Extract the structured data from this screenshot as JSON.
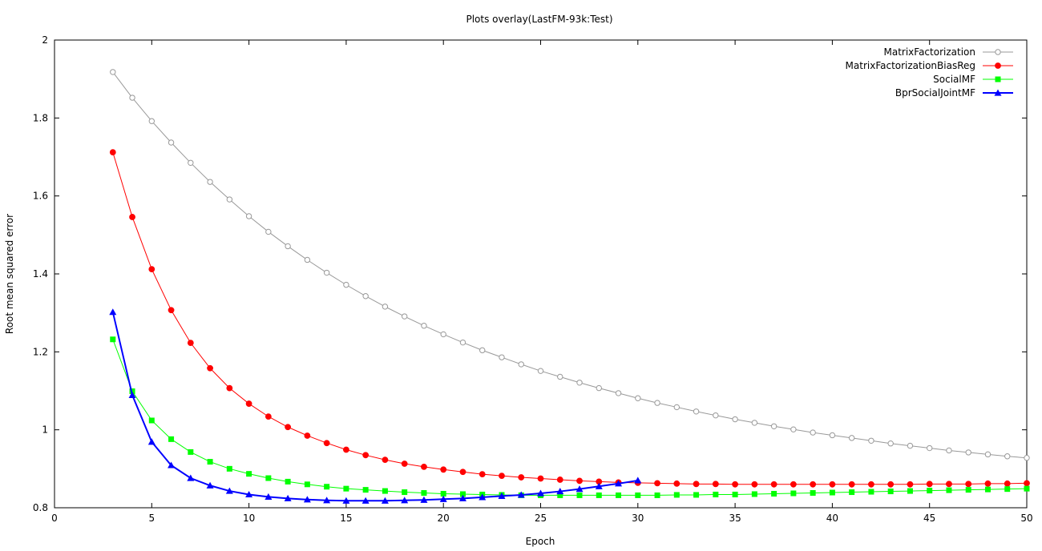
{
  "chart_data": {
    "type": "line",
    "title": "Plots overlay(LastFM-93k:Test)",
    "xlabel": "Epoch",
    "ylabel": "Root mean squared error",
    "xlim": [
      0,
      50
    ],
    "ylim": [
      0.8,
      2
    ],
    "xticks": [
      0,
      5,
      10,
      15,
      20,
      25,
      30,
      35,
      40,
      45,
      50
    ],
    "yticks": [
      0.8,
      1,
      1.2,
      1.4,
      1.6,
      1.8,
      2
    ],
    "xtick_labels": [
      "0",
      "5",
      "10",
      "15",
      "20",
      "25",
      "30",
      "35",
      "40",
      "45",
      "50"
    ],
    "ytick_labels": [
      "0.8",
      "1",
      "1.2",
      "1.4",
      "1.6",
      "1.8",
      "2"
    ],
    "grid": false,
    "legend_position": "top-right",
    "series": [
      {
        "name": "MatrixFactorization",
        "color": "#999999",
        "marker": "open-circle",
        "x": [
          3,
          4,
          5,
          6,
          7,
          8,
          9,
          10,
          11,
          12,
          13,
          14,
          15,
          16,
          17,
          18,
          19,
          20,
          21,
          22,
          23,
          24,
          25,
          26,
          27,
          28,
          29,
          30,
          31,
          32,
          33,
          34,
          35,
          36,
          37,
          38,
          39,
          40,
          41,
          42,
          43,
          44,
          45,
          46,
          47,
          48,
          49,
          50
        ],
        "values": [
          1.918,
          1.852,
          1.792,
          1.737,
          1.685,
          1.636,
          1.591,
          1.548,
          1.508,
          1.471,
          1.436,
          1.403,
          1.372,
          1.343,
          1.316,
          1.291,
          1.267,
          1.245,
          1.224,
          1.204,
          1.186,
          1.168,
          1.151,
          1.136,
          1.121,
          1.107,
          1.094,
          1.081,
          1.069,
          1.058,
          1.047,
          1.037,
          1.027,
          1.018,
          1.009,
          1.001,
          0.993,
          0.986,
          0.979,
          0.972,
          0.965,
          0.959,
          0.953,
          0.947,
          0.942,
          0.937,
          0.932,
          0.928
        ]
      },
      {
        "name": "MatrixFactorizationBiasReg",
        "color": "#ff0000",
        "marker": "filled-circle",
        "x": [
          3,
          4,
          5,
          6,
          7,
          8,
          9,
          10,
          11,
          12,
          13,
          14,
          15,
          16,
          17,
          18,
          19,
          20,
          21,
          22,
          23,
          24,
          25,
          26,
          27,
          28,
          29,
          30,
          31,
          32,
          33,
          34,
          35,
          36,
          37,
          38,
          39,
          40,
          41,
          42,
          43,
          44,
          45,
          46,
          47,
          48,
          49,
          50
        ],
        "values": [
          1.712,
          1.546,
          1.412,
          1.307,
          1.223,
          1.158,
          1.107,
          1.067,
          1.034,
          1.007,
          0.985,
          0.966,
          0.949,
          0.935,
          0.923,
          0.913,
          0.905,
          0.898,
          0.892,
          0.886,
          0.882,
          0.878,
          0.875,
          0.872,
          0.869,
          0.867,
          0.865,
          0.864,
          0.863,
          0.862,
          0.861,
          0.861,
          0.86,
          0.86,
          0.86,
          0.86,
          0.86,
          0.86,
          0.86,
          0.86,
          0.86,
          0.86,
          0.861,
          0.861,
          0.861,
          0.862,
          0.862,
          0.863
        ]
      },
      {
        "name": "SocialMF",
        "color": "#00ff00",
        "marker": "filled-square",
        "x": [
          3,
          4,
          5,
          6,
          7,
          8,
          9,
          10,
          11,
          12,
          13,
          14,
          15,
          16,
          17,
          18,
          19,
          20,
          21,
          22,
          23,
          24,
          25,
          26,
          27,
          28,
          29,
          30,
          31,
          32,
          33,
          34,
          35,
          36,
          37,
          38,
          39,
          40,
          41,
          42,
          43,
          44,
          45,
          46,
          47,
          48,
          49,
          50
        ],
        "values": [
          1.232,
          1.099,
          1.024,
          0.976,
          0.943,
          0.918,
          0.9,
          0.887,
          0.876,
          0.867,
          0.86,
          0.854,
          0.849,
          0.846,
          0.843,
          0.84,
          0.838,
          0.836,
          0.835,
          0.834,
          0.833,
          0.832,
          0.832,
          0.832,
          0.832,
          0.832,
          0.832,
          0.832,
          0.832,
          0.833,
          0.833,
          0.834,
          0.834,
          0.835,
          0.836,
          0.837,
          0.838,
          0.839,
          0.84,
          0.841,
          0.842,
          0.843,
          0.844,
          0.845,
          0.846,
          0.847,
          0.848,
          0.849
        ]
      },
      {
        "name": "BprSocialJointMF",
        "color": "#0000ff",
        "marker": "filled-triangle",
        "x": [
          3,
          4,
          5,
          6,
          7,
          8,
          9,
          10,
          11,
          12,
          13,
          14,
          15,
          16,
          17,
          18,
          19,
          20,
          21,
          22,
          23,
          24,
          25,
          26,
          27,
          28,
          29,
          30
        ],
        "values": [
          1.302,
          1.089,
          0.969,
          0.909,
          0.876,
          0.857,
          0.843,
          0.834,
          0.828,
          0.824,
          0.821,
          0.819,
          0.818,
          0.818,
          0.818,
          0.819,
          0.82,
          0.822,
          0.824,
          0.827,
          0.83,
          0.833,
          0.837,
          0.842,
          0.848,
          0.855,
          0.862,
          0.87
        ]
      }
    ]
  }
}
